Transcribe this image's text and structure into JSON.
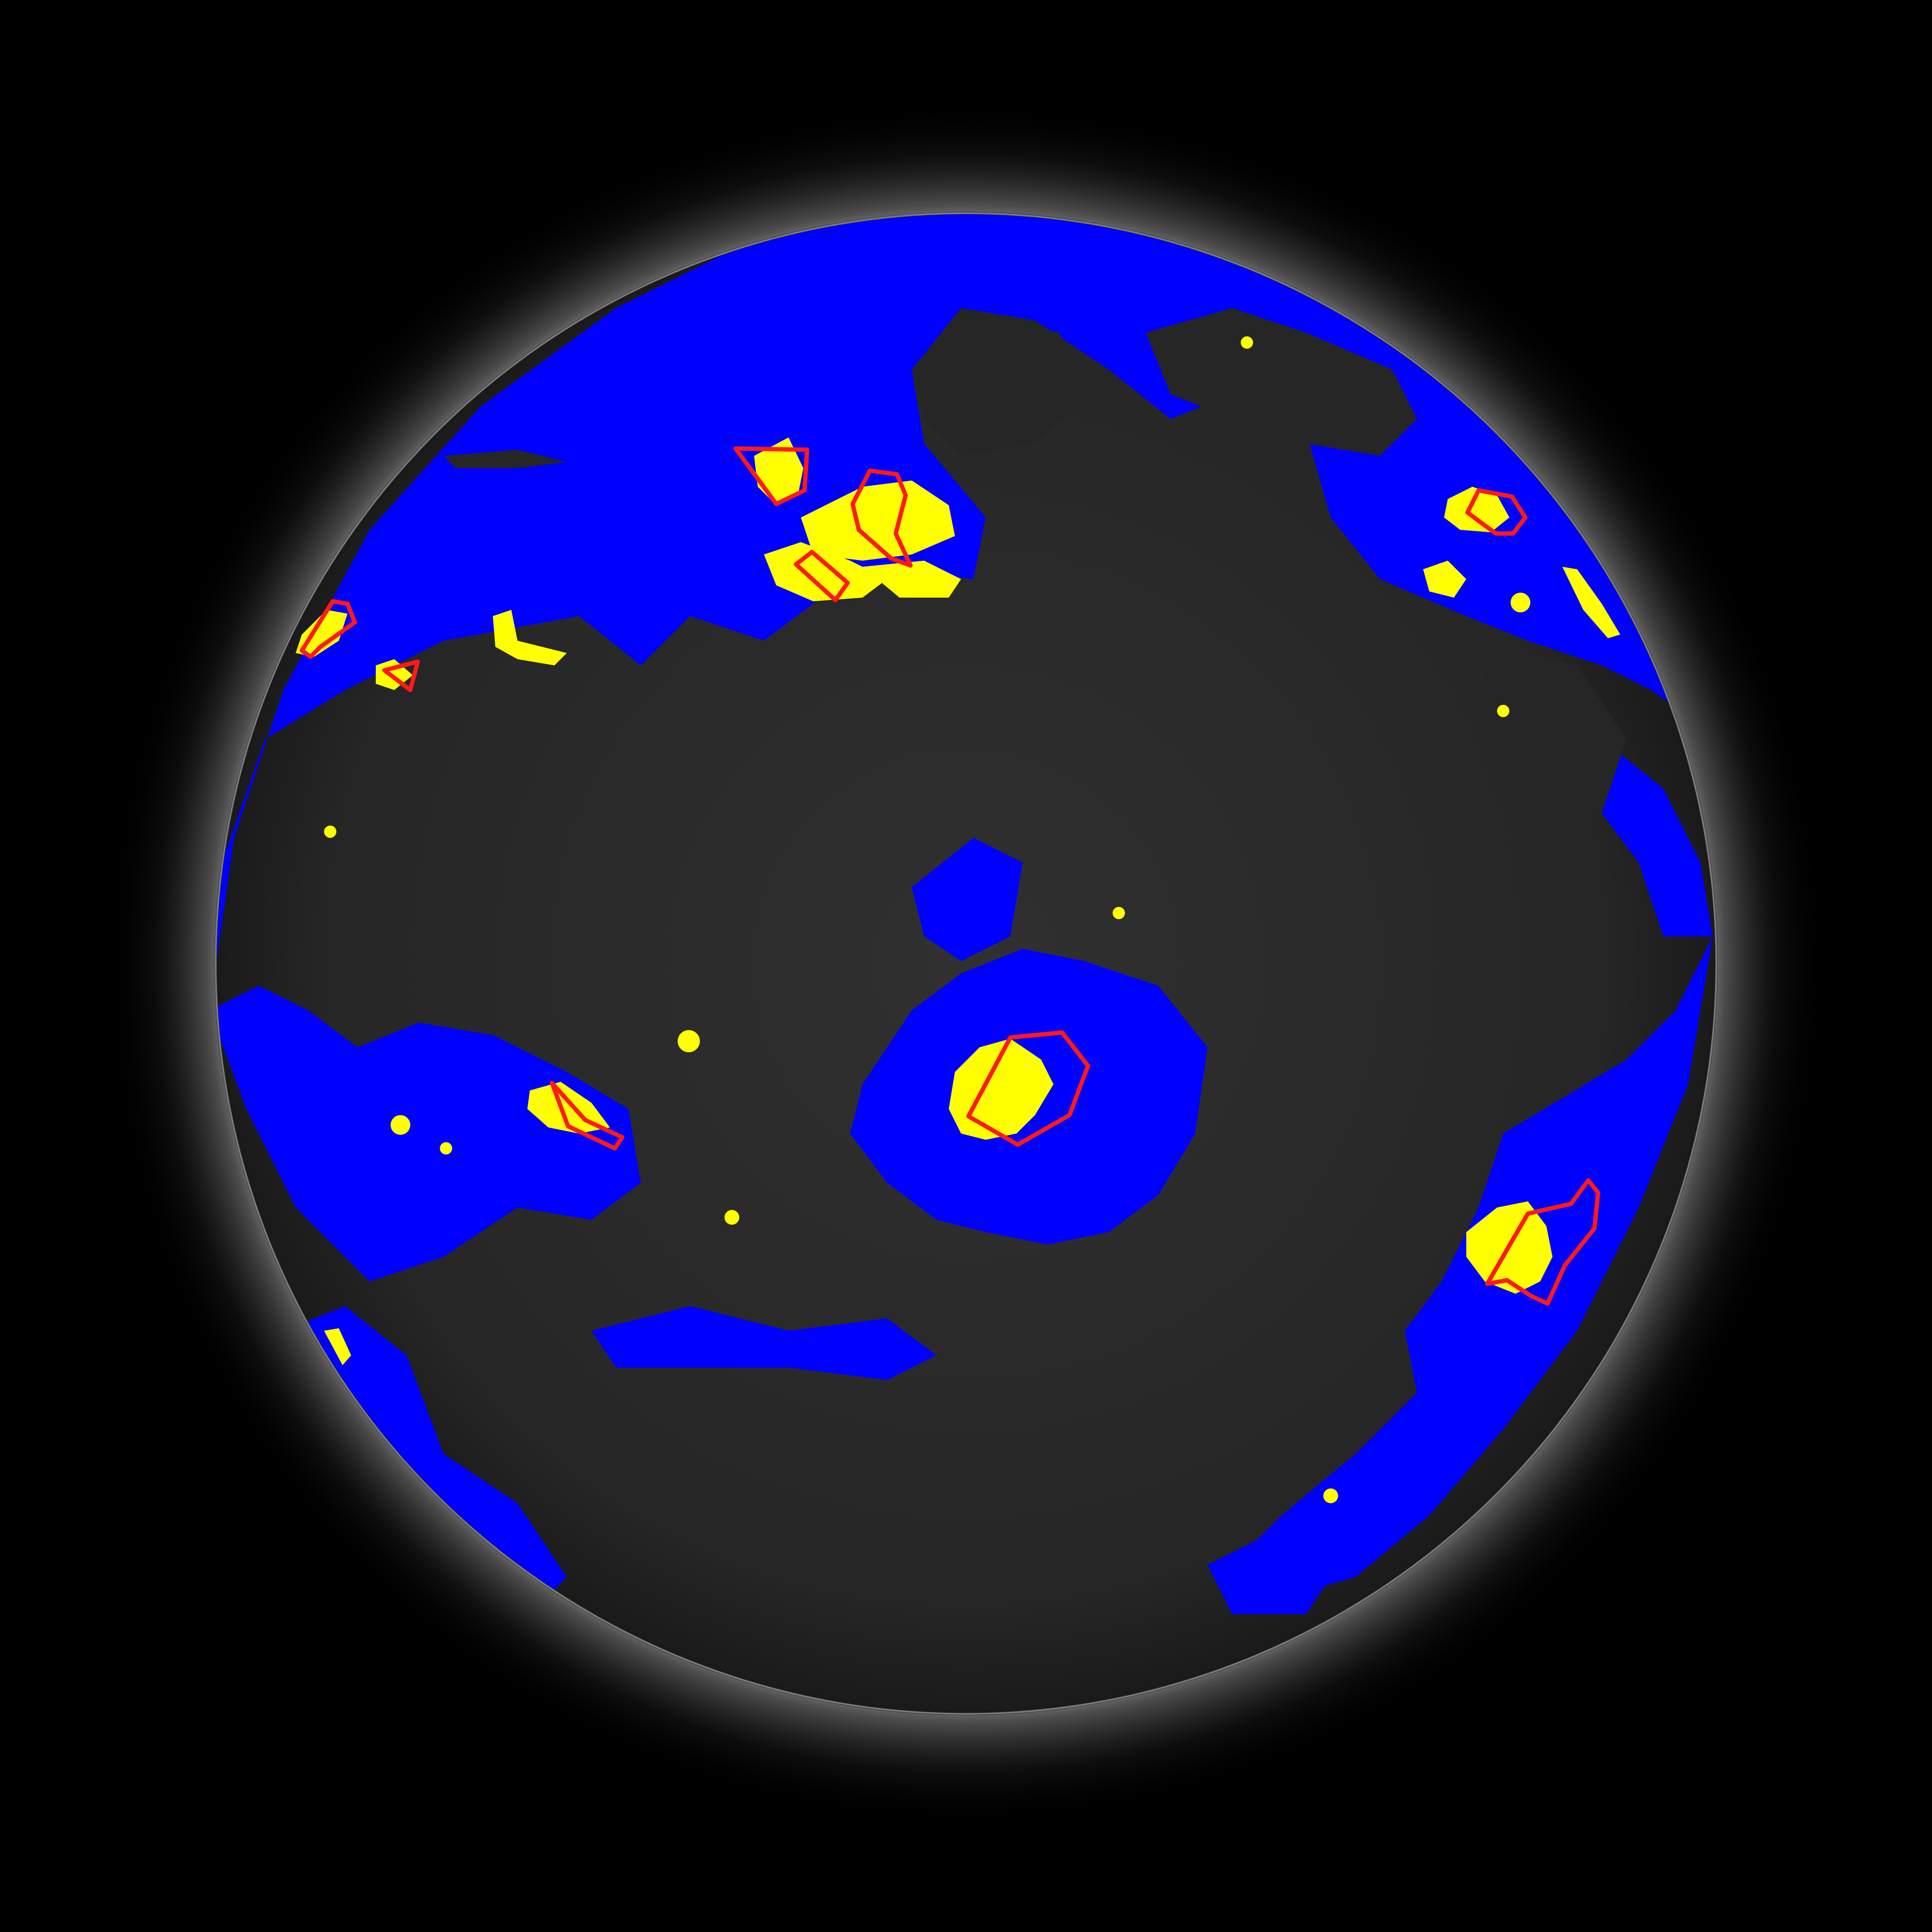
{
  "image": {
    "kind": "solar-disk-segmentation-overlay",
    "colors": {
      "background": "#000000",
      "corona": "#ffffff",
      "disk_dark": "#262626",
      "region_blue": "#0000ff",
      "region_yellow": "#ffff00",
      "contour_red": "#ff1a1a"
    },
    "legend_labels": [],
    "red_contours_count": 12
  }
}
